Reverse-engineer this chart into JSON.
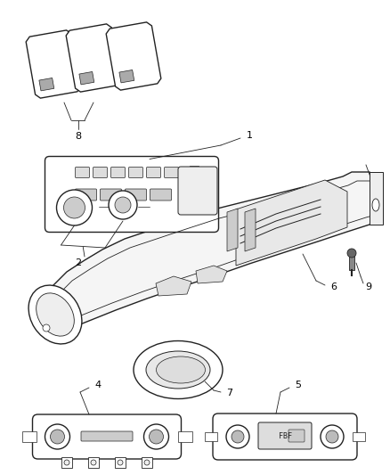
{
  "background_color": "#ffffff",
  "line_color": "#222222",
  "label_color": "#000000",
  "figsize": [
    4.38,
    5.33
  ],
  "dpi": 100
}
